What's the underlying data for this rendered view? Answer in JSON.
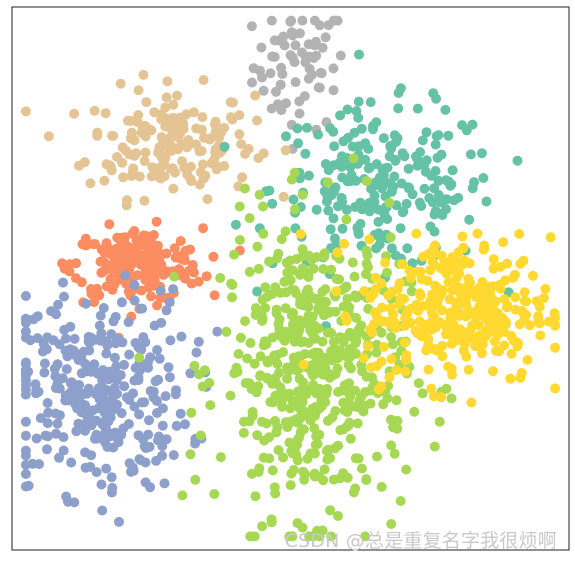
{
  "chart_data": {
    "type": "scatter",
    "title": "",
    "xlabel": "",
    "ylabel": "",
    "axes_ticks": false,
    "grid": false,
    "legend": false,
    "xlim": [
      -60,
      60
    ],
    "ylim": [
      -60,
      60
    ],
    "series": [
      {
        "color": "#b3b3b3",
        "cx": 2,
        "cy": 47,
        "sx": 5,
        "sy": 7,
        "n": 70
      },
      {
        "color": "#e5c494",
        "cx": -26,
        "cy": 30,
        "sx": 9,
        "sy": 6,
        "n": 180
      },
      {
        "color": "#66c2a5",
        "cx": 20,
        "cy": 20,
        "sx": 12,
        "sy": 9,
        "n": 230
      },
      {
        "color": "#fc8d62",
        "cx": -33,
        "cy": 3,
        "sx": 7,
        "sy": 4,
        "n": 200
      },
      {
        "color": "#8da0cb",
        "cx": -42,
        "cy": -25,
        "sx": 10,
        "sy": 11,
        "n": 320
      },
      {
        "color": "#a6d854",
        "cx": 5,
        "cy": -20,
        "sx": 10,
        "sy": 16,
        "n": 520
      },
      {
        "color": "#ffd92f",
        "cx": 36,
        "cy": -7,
        "sx": 10,
        "sy": 8,
        "n": 320
      }
    ]
  },
  "watermark": "CSDN @总是重复名字我很烦啊"
}
